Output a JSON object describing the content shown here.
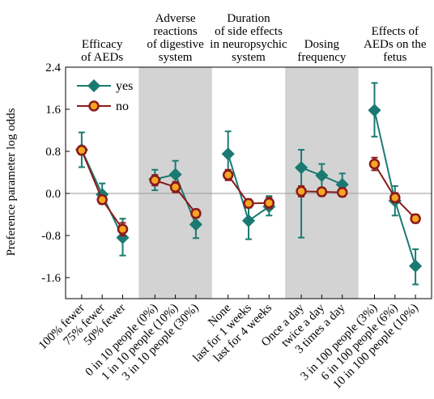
{
  "chart_data": {
    "type": "line",
    "ylabel": "Preference parameter log odds",
    "xlabel": "",
    "ylim": [
      -2.0,
      2.4
    ],
    "yticks": [
      "2.4",
      "1.6",
      "0.8",
      "0.0",
      "-0.8",
      "-1.6"
    ],
    "ytick_values": [
      2.4,
      1.6,
      0.8,
      0.0,
      -0.8,
      -1.6
    ],
    "reference_line": 0.0,
    "legend_position": "top-left",
    "colors": {
      "yes": "#1a7a72",
      "no": "#8b1a1a",
      "no_fill": "#f5a623",
      "shade": "#d3d3d3",
      "refline": "#9a9a9a"
    },
    "groups": [
      {
        "title_lines": [
          "Efficacy",
          "of AEDs"
        ],
        "shaded": false,
        "categories": [
          "100% fewer",
          "75% fewer",
          "50% fewer"
        ]
      },
      {
        "title_lines": [
          "Adverse",
          "reactions",
          "of digestive",
          "system"
        ],
        "shaded": true,
        "categories": [
          "0 in 10 people (0%)",
          "1 in 10 people (10%)",
          "3 in 10 people (30%)"
        ]
      },
      {
        "title_lines": [
          "Duration",
          "of side effects",
          "in neuropsychic",
          "system"
        ],
        "shaded": false,
        "categories": [
          "None",
          "last for 1 weeks",
          "last for 4 weeks"
        ]
      },
      {
        "title_lines": [
          "Dosing",
          "frequency"
        ],
        "shaded": true,
        "categories": [
          "Once a day",
          "twice a day",
          "3 times a day"
        ]
      },
      {
        "title_lines": [
          "Effects of",
          "AEDs on the",
          "fetus"
        ],
        "shaded": false,
        "categories": [
          "3 in 100 people (3%)",
          "6 in 100 people (6%)",
          "10 in 100 people (10%)"
        ]
      }
    ],
    "series": [
      {
        "name": "yes",
        "values": [
          [
            0.83,
            -0.02,
            -0.84
          ],
          [
            0.27,
            0.36,
            -0.59
          ],
          [
            0.75,
            -0.52,
            -0.25
          ],
          [
            0.49,
            0.34,
            0.17
          ],
          [
            1.58,
            -0.14,
            -1.38
          ]
        ],
        "lower": [
          [
            0.5,
            -0.18,
            -1.18
          ],
          [
            0.06,
            0.1,
            -0.85
          ],
          [
            0.3,
            -0.87,
            -0.42
          ],
          [
            -0.84,
            0.1,
            -0.02
          ],
          [
            1.08,
            -0.42,
            -1.73
          ]
        ],
        "upper": [
          [
            1.16,
            0.19,
            -0.48
          ],
          [
            0.45,
            0.62,
            -0.35
          ],
          [
            1.18,
            -0.18,
            -0.05
          ],
          [
            0.83,
            0.56,
            0.38
          ],
          [
            2.1,
            0.14,
            -1.06
          ]
        ]
      },
      {
        "name": "no",
        "values": [
          [
            0.82,
            -0.12,
            -0.68
          ],
          [
            0.25,
            0.12,
            -0.38
          ],
          [
            0.35,
            -0.19,
            -0.18
          ],
          [
            0.04,
            0.03,
            0.02
          ],
          [
            0.56,
            -0.08,
            -0.48
          ]
        ],
        "lower": [
          [
            0.74,
            -0.2,
            -0.8
          ],
          [
            0.15,
            0.02,
            -0.46
          ],
          [
            0.25,
            -0.27,
            -0.28
          ],
          [
            -0.06,
            -0.05,
            -0.06
          ],
          [
            0.44,
            -0.17,
            -0.56
          ]
        ],
        "upper": [
          [
            0.9,
            -0.04,
            -0.56
          ],
          [
            0.35,
            0.22,
            -0.3
          ],
          [
            0.45,
            -0.11,
            -0.08
          ],
          [
            0.14,
            0.11,
            0.1
          ],
          [
            0.68,
            0.01,
            -0.4
          ]
        ]
      }
    ]
  }
}
